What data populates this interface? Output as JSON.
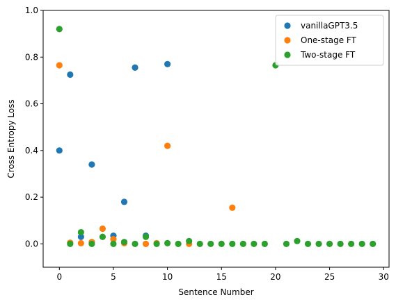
{
  "chart_data": {
    "type": "scatter",
    "title": "",
    "xlabel": "Sentence Number",
    "ylabel": "Cross Entropy Loss",
    "xlim": [
      -1.5,
      30.5
    ],
    "ylim": [
      -0.1,
      1.0
    ],
    "xticks": [
      0,
      5,
      10,
      15,
      20,
      25,
      30
    ],
    "yticks": [
      0.0,
      0.2,
      0.4,
      0.6,
      0.8,
      1.0
    ],
    "xtick_labels": [
      "0",
      "5",
      "10",
      "15",
      "20",
      "25",
      "30"
    ],
    "ytick_labels": [
      "0.0",
      "0.2",
      "0.4",
      "0.6",
      "0.8",
      "1.0"
    ],
    "grid": false,
    "legend_position": "top-right",
    "series": [
      {
        "name": "vanillaGPT3.5",
        "color": "#1f77b4",
        "points": [
          [
            0,
            0.4
          ],
          [
            1,
            0.725
          ],
          [
            2,
            0.03
          ],
          [
            3,
            0.34
          ],
          [
            5,
            0.035
          ],
          [
            6,
            0.18
          ],
          [
            7,
            0.755
          ],
          [
            8,
            0.035
          ],
          [
            10,
            0.77
          ]
        ]
      },
      {
        "name": "One-stage FT",
        "color": "#ff7f0e",
        "points": [
          [
            0,
            0.765
          ],
          [
            1,
            0.005
          ],
          [
            2,
            0.003
          ],
          [
            3,
            0.008
          ],
          [
            4,
            0.065
          ],
          [
            5,
            0.02
          ],
          [
            6,
            0.003
          ],
          [
            8,
            0.0
          ],
          [
            9,
            0.003
          ],
          [
            10,
            0.42
          ],
          [
            12,
            0.0
          ],
          [
            16,
            0.155
          ]
        ]
      },
      {
        "name": "Two-stage FT",
        "color": "#2ca02c",
        "points": [
          [
            0,
            0.92
          ],
          [
            1,
            0.0
          ],
          [
            2,
            0.05
          ],
          [
            3,
            0.0
          ],
          [
            4,
            0.03
          ],
          [
            5,
            0.0
          ],
          [
            6,
            0.008
          ],
          [
            7,
            0.0
          ],
          [
            8,
            0.03
          ],
          [
            9,
            0.0
          ],
          [
            10,
            0.003
          ],
          [
            11,
            0.0
          ],
          [
            12,
            0.012
          ],
          [
            13,
            0.0
          ],
          [
            14,
            0.0
          ],
          [
            15,
            0.0
          ],
          [
            16,
            0.0
          ],
          [
            17,
            0.0
          ],
          [
            18,
            0.0
          ],
          [
            19,
            0.0
          ],
          [
            20,
            0.765
          ],
          [
            21,
            0.0
          ],
          [
            22,
            0.012
          ],
          [
            23,
            0.0
          ],
          [
            24,
            0.0
          ],
          [
            25,
            0.0
          ],
          [
            26,
            0.0
          ],
          [
            27,
            0.0
          ],
          [
            28,
            0.0
          ],
          [
            29,
            0.0
          ]
        ]
      }
    ]
  }
}
